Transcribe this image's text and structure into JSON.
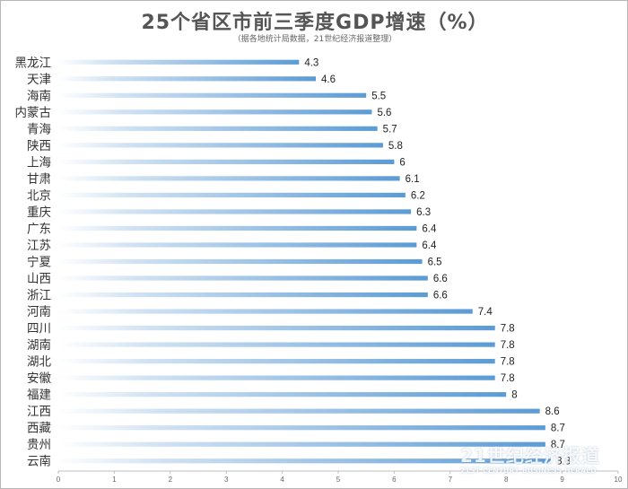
{
  "chart_data": {
    "type": "bar",
    "orientation": "horizontal",
    "title": "25个省区市前三季度GDP增速（%）",
    "subtitle": "（据各地统计局数据，21世纪经济报道整理）",
    "categories": [
      "黑龙江",
      "天津",
      "海南",
      "内蒙古",
      "青海",
      "陕西",
      "上海",
      "甘肃",
      "北京",
      "重庆",
      "广东",
      "江苏",
      "宁夏",
      "山西",
      "浙江",
      "河南",
      "四川",
      "湖南",
      "湖北",
      "安徽",
      "福建",
      "江西",
      "西藏",
      "贵州",
      "云南"
    ],
    "values": [
      4.3,
      4.6,
      5.5,
      5.6,
      5.7,
      5.8,
      6,
      6.1,
      6.2,
      6.3,
      6.4,
      6.4,
      6.5,
      6.6,
      6.6,
      7.4,
      7.8,
      7.8,
      7.8,
      7.8,
      8,
      8.6,
      8.7,
      8.7,
      8.8
    ],
    "data_labels": [
      "4.3",
      "4.6",
      "5.5",
      "5.6",
      "5.7",
      "5.8",
      "6",
      "6.1",
      "6.2",
      "6.3",
      "6.4",
      "6.4",
      "6.5",
      "6.6",
      "6.6",
      "7.4",
      "7.8",
      "7.8",
      "7.8",
      "7.8",
      "8",
      "8.6",
      "8.7",
      "8.7",
      "8.8"
    ],
    "xlim": [
      0,
      10
    ],
    "x_ticks": [
      "0",
      "1",
      "2",
      "3",
      "4",
      "5",
      "6",
      "7",
      "8",
      "9",
      "10"
    ],
    "grid": false,
    "legend": "none",
    "bar_color_start": "#ffffff",
    "bar_color_end": "#5b9bd5"
  },
  "watermark": {
    "main": "21世纪经济报道",
    "sub": "21ST CENTURY BUSINESS HERALD"
  }
}
